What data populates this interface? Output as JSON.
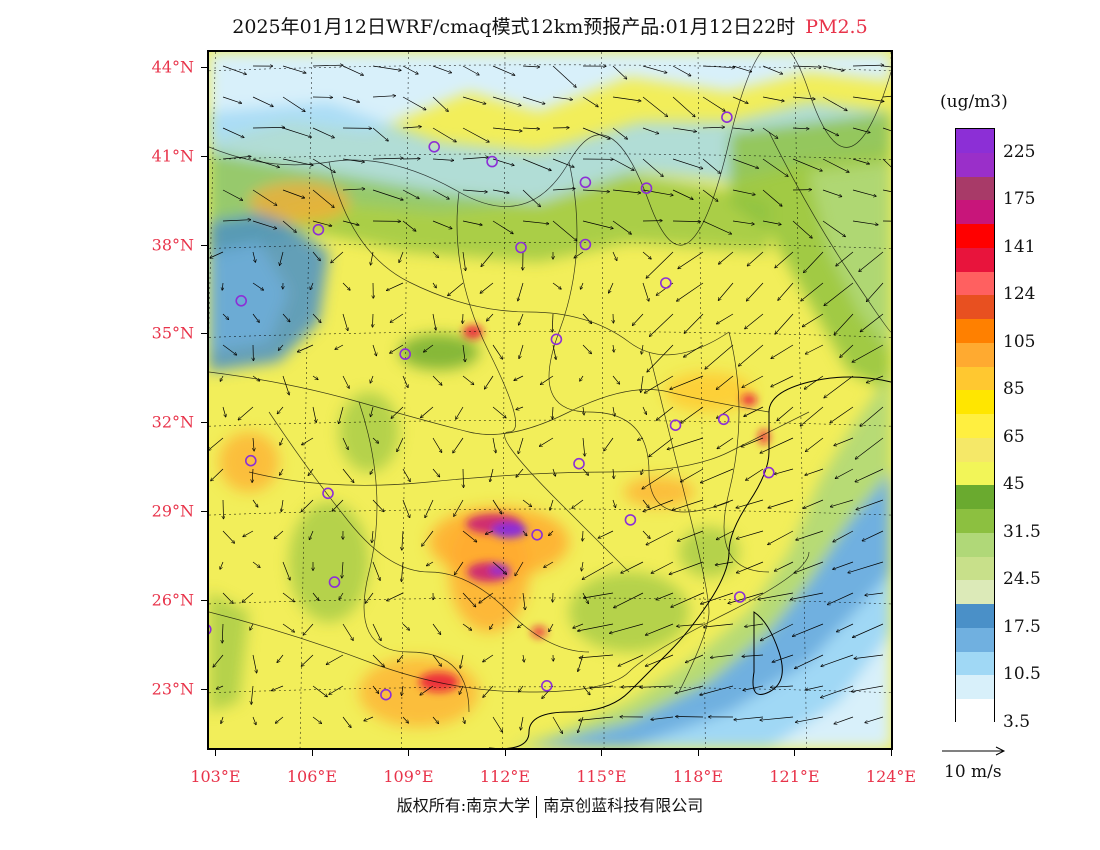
{
  "title": {
    "main": "2025年01月12日WRF/cmaq模式12km预报产品:01月12日22时",
    "variable": "PM2.5"
  },
  "axes": {
    "lat_labels": [
      "44°N",
      "41°N",
      "38°N",
      "35°N",
      "32°N",
      "29°N",
      "26°N",
      "23°N"
    ],
    "lat_values": [
      44,
      41,
      38,
      35,
      32,
      29,
      26,
      23
    ],
    "lon_labels": [
      "103°E",
      "106°E",
      "109°E",
      "112°E",
      "115°E",
      "118°E",
      "121°E",
      "124°E"
    ],
    "lon_values": [
      103,
      106,
      109,
      112,
      115,
      118,
      121,
      124
    ],
    "lat_range": [
      21,
      44.5
    ],
    "lon_range": [
      102.8,
      124
    ]
  },
  "legend": {
    "unit": "(ug/m3)",
    "labels": [
      "225",
      "175",
      "141",
      "124",
      "105",
      "85",
      "65",
      "45",
      "31.5",
      "24.5",
      "17.5",
      "10.5",
      "3.5"
    ],
    "colors": [
      "#8c2fd6",
      "#9a2fc9",
      "#a83a68",
      "#c8157a",
      "#ff0000",
      "#e8143c",
      "#ff6060",
      "#e85020",
      "#ff8000",
      "#ffaa30",
      "#ffc830",
      "#ffe600",
      "#ffef40",
      "#f5e868",
      "#f2f558",
      "#6aaa2f",
      "#8cc040",
      "#b0d878",
      "#c8e08a",
      "#dceab8",
      "#4a90c8",
      "#70b0e0",
      "#a0d8f5",
      "#d8f0fa",
      "#ffffff"
    ]
  },
  "vector": {
    "label": "10 m/s"
  },
  "copyright": {
    "owner1": "版权所有:南京大学",
    "owner2": "南京创蓝科技有限公司"
  },
  "stations": [
    {
      "lon": 118.9,
      "lat": 42.3
    },
    {
      "lon": 111.6,
      "lat": 40.8
    },
    {
      "lon": 114.5,
      "lat": 40.1
    },
    {
      "lon": 116.4,
      "lat": 39.9
    },
    {
      "lon": 106.2,
      "lat": 38.5
    },
    {
      "lon": 112.5,
      "lat": 37.9
    },
    {
      "lon": 114.5,
      "lat": 38.0
    },
    {
      "lon": 117.0,
      "lat": 36.7
    },
    {
      "lon": 103.8,
      "lat": 36.1
    },
    {
      "lon": 108.9,
      "lat": 34.3
    },
    {
      "lon": 113.6,
      "lat": 34.8
    },
    {
      "lon": 117.3,
      "lat": 31.9
    },
    {
      "lon": 118.8,
      "lat": 32.1
    },
    {
      "lon": 114.3,
      "lat": 30.6
    },
    {
      "lon": 120.2,
      "lat": 30.3
    },
    {
      "lon": 104.1,
      "lat": 30.7
    },
    {
      "lon": 106.5,
      "lat": 29.6
    },
    {
      "lon": 115.9,
      "lat": 28.7
    },
    {
      "lon": 113.0,
      "lat": 28.2
    },
    {
      "lon": 106.7,
      "lat": 26.6
    },
    {
      "lon": 119.3,
      "lat": 26.1
    },
    {
      "lon": 102.7,
      "lat": 25.0
    },
    {
      "lon": 108.3,
      "lat": 22.8
    },
    {
      "lon": 113.3,
      "lat": 23.1
    },
    {
      "lon": 109.8,
      "lat": 41.3
    }
  ]
}
